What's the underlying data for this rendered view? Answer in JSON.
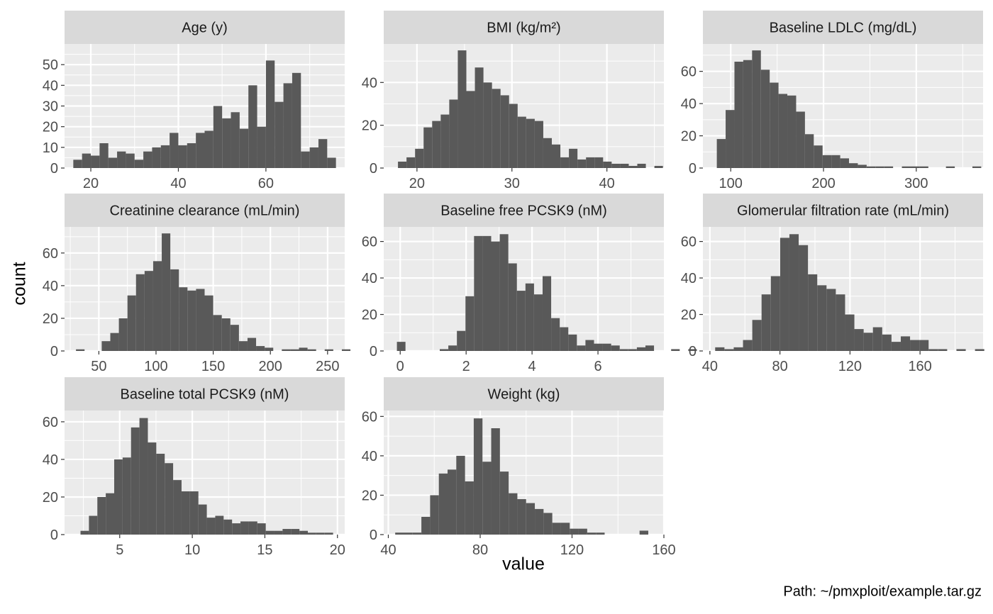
{
  "figure": {
    "xlabel": "value",
    "ylabel": "count",
    "caption": "Path: ~/pmxploit/example.tar.gz"
  },
  "colors": {
    "panel_bg": "#ebebeb",
    "strip_bg": "#d9d9d9",
    "grid": "#ffffff",
    "bar": "#595959",
    "tick_text": "#4d4d4d"
  },
  "chart_data": [
    {
      "type": "bar",
      "title": "Age (y)",
      "bins": {
        "start": 16,
        "width": 2
      },
      "values": [
        4,
        7,
        6,
        12,
        5,
        8,
        7,
        4,
        8,
        10,
        11,
        17,
        11,
        12,
        17,
        18,
        30,
        24,
        27,
        19,
        40,
        20,
        52,
        32,
        41,
        46,
        8,
        10,
        14,
        5
      ],
      "xlim": [
        14,
        78
      ],
      "ylim": [
        0,
        60
      ],
      "xticks": [
        20,
        40,
        60
      ],
      "yticks": [
        0,
        10,
        20,
        30,
        40,
        50
      ],
      "grid": true
    },
    {
      "type": "bar",
      "title": "BMI (kg/m²)",
      "bins": {
        "start": 18,
        "width": 0.9
      },
      "values": [
        3,
        5,
        9,
        19,
        22,
        25,
        32,
        55,
        36,
        47,
        40,
        37,
        34,
        30,
        24,
        23,
        22,
        14,
        11,
        5,
        9,
        4,
        5,
        5,
        3,
        2,
        2,
        1,
        2,
        0,
        1
      ],
      "xlim": [
        16.5,
        46
      ],
      "ylim": [
        0,
        58
      ],
      "xticks": [
        20,
        30,
        40
      ],
      "yticks": [
        0,
        20,
        40
      ],
      "grid": true
    },
    {
      "type": "bar",
      "title": "Baseline LDLC (mg/dL)",
      "bins": {
        "start": 85,
        "width": 9.5
      },
      "values": [
        18,
        36,
        66,
        67,
        73,
        61,
        53,
        46,
        45,
        35,
        21,
        14,
        8,
        8,
        6,
        3,
        2,
        1,
        1,
        1,
        0,
        1,
        1,
        1,
        0,
        0,
        1,
        0,
        0,
        1
      ],
      "xlim": [
        70,
        372
      ],
      "ylim": [
        0,
        77
      ],
      "xticks": [
        100,
        200,
        300
      ],
      "yticks": [
        0,
        20,
        40,
        60
      ],
      "grid": true
    },
    {
      "type": "bar",
      "title": "Creatinine clearance (mL/min)",
      "bins": {
        "start": 30,
        "width": 7.5
      },
      "values": [
        1,
        0,
        0,
        6,
        11,
        20,
        34,
        47,
        49,
        55,
        72,
        50,
        39,
        37,
        38,
        34,
        22,
        20,
        16,
        6,
        8,
        3,
        2,
        0,
        1,
        1,
        2,
        1,
        0,
        1,
        0,
        1
      ],
      "xlim": [
        20,
        265
      ],
      "ylim": [
        0,
        76
      ],
      "xticks": [
        50,
        100,
        150,
        200,
        250
      ],
      "yticks": [
        0,
        20,
        40,
        60
      ],
      "grid": true
    },
    {
      "type": "bar",
      "title": "Baseline free PCSK9 (nM)",
      "bins": {
        "start": -0.1,
        "width": 0.26
      },
      "values": [
        5,
        0,
        0,
        0,
        0,
        1,
        3,
        11,
        30,
        63,
        63,
        60,
        64,
        48,
        33,
        37,
        31,
        41,
        18,
        13,
        9,
        3,
        6,
        4,
        4,
        3,
        1,
        1,
        2,
        3,
        0,
        0,
        1,
        0,
        1
      ],
      "xlim": [
        -0.5,
        8
      ],
      "ylim": [
        0,
        68
      ],
      "xticks": [
        0,
        2,
        4,
        6
      ],
      "yticks": [
        0,
        20,
        40,
        60
      ],
      "grid": true
    },
    {
      "type": "bar",
      "title": "Glomerular filtration rate (mL/min)",
      "bins": {
        "start": 43,
        "width": 5.3
      },
      "values": [
        2,
        1,
        2,
        6,
        17,
        31,
        41,
        62,
        64,
        58,
        42,
        36,
        34,
        31,
        20,
        12,
        10,
        13,
        9,
        5,
        8,
        6,
        6,
        1,
        1,
        0,
        1,
        0,
        1
      ],
      "xlim": [
        36,
        196
      ],
      "ylim": [
        0,
        68
      ],
      "xticks": [
        40,
        80,
        120,
        160
      ],
      "yticks": [
        0,
        20,
        40,
        60
      ],
      "grid": true
    },
    {
      "type": "bar",
      "title": "Baseline total PCSK9 (nM)",
      "bins": {
        "start": 2.3,
        "width": 0.58
      },
      "values": [
        2,
        10,
        20,
        22,
        40,
        41,
        57,
        62,
        49,
        43,
        38,
        29,
        23,
        23,
        16,
        9,
        10,
        8,
        6,
        7,
        7,
        6,
        2,
        2,
        3,
        3,
        2,
        1,
        1,
        1
      ],
      "xlim": [
        1.2,
        20.5
      ],
      "ylim": [
        0,
        66
      ],
      "xticks": [
        5,
        10,
        15,
        20
      ],
      "yticks": [
        0,
        20,
        40,
        60
      ],
      "grid": true
    },
    {
      "type": "bar",
      "title": "Weight (kg)",
      "bins": {
        "start": 43,
        "width": 3.8
      },
      "values": [
        1,
        1,
        1,
        9,
        20,
        31,
        33,
        40,
        27,
        59,
        37,
        54,
        32,
        21,
        18,
        16,
        13,
        11,
        6,
        6,
        3,
        3,
        1,
        1,
        0,
        0,
        0,
        0,
        2
      ],
      "xlim": [
        38,
        160
      ],
      "ylim": [
        0,
        63
      ],
      "xticks": [
        40,
        80,
        120,
        160
      ],
      "yticks": [
        0,
        20,
        40,
        60
      ],
      "grid": true
    }
  ]
}
